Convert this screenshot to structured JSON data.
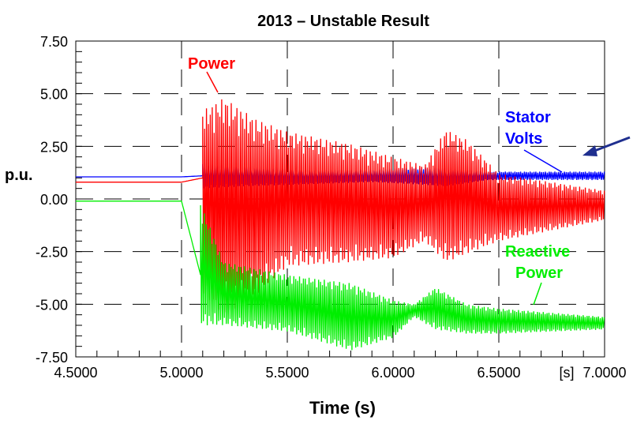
{
  "chart_data": {
    "type": "line",
    "title": "2013 – Unstable Result",
    "xlabel": "Time (s)",
    "ylabel": "p.u.",
    "x_unit_label": "[s]",
    "xlim": [
      4.5,
      7.0
    ],
    "ylim": [
      -7.5,
      7.5
    ],
    "x_ticks": [
      "4.5000",
      "5.0000",
      "5.5000",
      "6.0000",
      "6.5000",
      "7.0000"
    ],
    "y_ticks": [
      "7.50",
      "5.00",
      "2.50",
      "0.00",
      "-2.50",
      "-5.00",
      "-7.50"
    ],
    "x_tick_values": [
      4.5,
      5.0,
      5.5,
      6.0,
      6.5,
      7.0
    ],
    "y_tick_values": [
      7.5,
      5.0,
      2.5,
      0.0,
      -2.5,
      -5.0,
      -7.5
    ],
    "grid": "dashed",
    "series": [
      {
        "name": "Power",
        "color": "#ff0000",
        "points": [
          [
            4.5,
            0.8
          ],
          [
            5.0,
            0.8
          ],
          [
            5.1,
            1.0
          ],
          [
            5.2,
            0.5
          ],
          [
            5.5,
            0.2
          ],
          [
            6.0,
            0.0
          ],
          [
            6.2,
            0.5
          ],
          [
            6.5,
            -0.3
          ],
          [
            7.0,
            -0.4
          ]
        ],
        "band": [
          [
            5.1,
            4.2,
            -4.5
          ],
          [
            5.2,
            4.8,
            -5.5
          ],
          [
            5.35,
            3.8,
            -4.6
          ],
          [
            5.5,
            3.2,
            -3.2
          ],
          [
            5.8,
            2.6,
            -3.0
          ],
          [
            6.0,
            2.0,
            -2.8
          ],
          [
            6.15,
            1.6,
            -2.0
          ],
          [
            6.25,
            3.3,
            -3.0
          ],
          [
            6.35,
            2.8,
            -2.6
          ],
          [
            6.5,
            1.2,
            -2.0
          ],
          [
            7.0,
            0.4,
            -1.0
          ]
        ]
      },
      {
        "name": "Stator Volts",
        "color": "#0000ff",
        "points": [
          [
            4.5,
            1.05
          ],
          [
            5.0,
            1.05
          ],
          [
            5.1,
            1.1
          ],
          [
            5.5,
            1.0
          ],
          [
            6.0,
            1.1
          ],
          [
            6.5,
            1.1
          ],
          [
            7.0,
            1.1
          ]
        ],
        "band": [
          [
            5.1,
            1.7,
            0.5
          ],
          [
            5.3,
            1.6,
            0.6
          ],
          [
            5.6,
            1.4,
            0.7
          ],
          [
            5.9,
            1.4,
            0.8
          ],
          [
            6.1,
            1.5,
            0.7
          ],
          [
            6.25,
            1.5,
            0.6
          ],
          [
            6.45,
            1.3,
            0.9
          ],
          [
            7.0,
            1.3,
            0.9
          ]
        ]
      },
      {
        "name": "Reactive Power",
        "color": "#00ee00",
        "points": [
          [
            4.5,
            -0.1
          ],
          [
            5.0,
            -0.1
          ],
          [
            5.1,
            -4.0
          ],
          [
            5.5,
            -4.5
          ],
          [
            6.0,
            -5.8
          ],
          [
            6.2,
            -5.2
          ],
          [
            6.5,
            -5.8
          ],
          [
            7.0,
            -5.9
          ]
        ],
        "band": [
          [
            5.09,
            -0.2,
            -6.0
          ],
          [
            5.2,
            -3.0,
            -6.0
          ],
          [
            5.5,
            -3.6,
            -6.3
          ],
          [
            5.8,
            -4.0,
            -7.2
          ],
          [
            6.0,
            -4.8,
            -6.6
          ],
          [
            6.1,
            -5.0,
            -5.6
          ],
          [
            6.2,
            -4.2,
            -6.2
          ],
          [
            6.35,
            -5.0,
            -6.4
          ],
          [
            6.5,
            -5.2,
            -6.4
          ],
          [
            7.0,
            -5.6,
            -6.2
          ]
        ]
      }
    ],
    "annotations": [
      {
        "text": "Power",
        "color": "#ff0000"
      },
      {
        "text": "Stator",
        "color": "#0000ff"
      },
      {
        "text": "Volts",
        "color": "#0000ff"
      },
      {
        "text": "Reactive",
        "color": "#00ee00"
      },
      {
        "text": "Power",
        "color": "#00ee00"
      }
    ]
  }
}
